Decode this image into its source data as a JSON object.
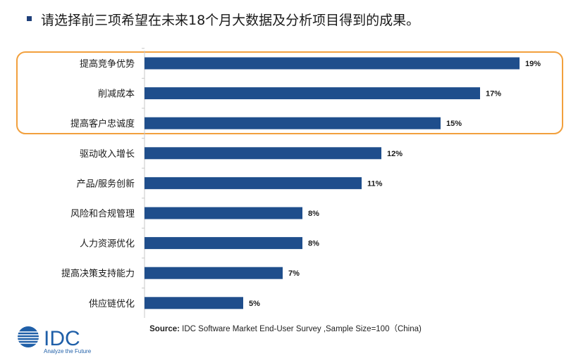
{
  "header": {
    "title": "请选择前三项希望在未来18个月大数据及分析项目得到的成果。"
  },
  "chart_data": {
    "type": "bar",
    "orientation": "horizontal",
    "categories": [
      "提高竞争优势",
      "削减成本",
      "提高客户忠诚度",
      "驱动收入增长",
      "产品/服务创新",
      "风险和合规管理",
      "人力资源优化",
      "提高决策支持能力",
      "供应链优化"
    ],
    "values": [
      19,
      17,
      15,
      12,
      11,
      8,
      8,
      7,
      5
    ],
    "value_labels": [
      "19%",
      "17%",
      "15%",
      "12%",
      "11%",
      "8%",
      "8%",
      "7%",
      "5%"
    ],
    "value_unit": "%",
    "xlim": [
      0,
      20
    ],
    "bar_color": "#1f4e8c",
    "highlight_color": "#f2a03d",
    "highlighted_count": 3,
    "grid": false,
    "legend": "none"
  },
  "footer": {
    "source_label": "Source:",
    "source_text": " IDC Software Market End-User Survey ,Sample Size=100（China)",
    "logo_text": "IDC",
    "tagline": "Analyze the Future",
    "brand_color": "#1f5fa8"
  }
}
